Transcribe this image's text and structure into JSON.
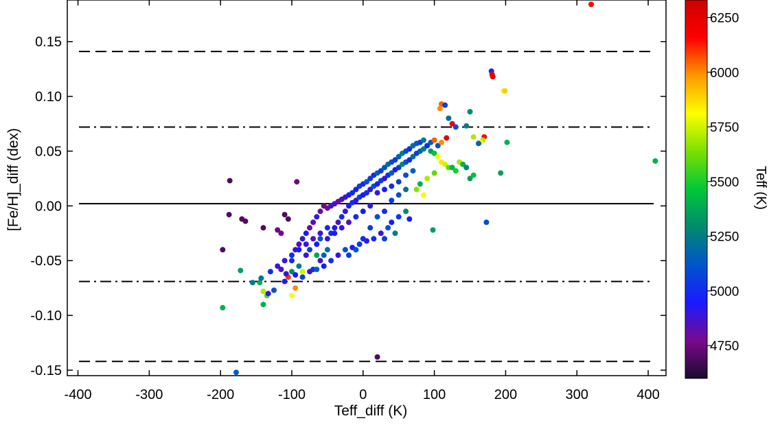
{
  "chart_data": {
    "type": "scatter",
    "title": "",
    "xlabel": "Teff_diff (K)",
    "ylabel": "[Fe/H]_diff (dex)",
    "xlim": [
      -415,
      425
    ],
    "ylim": [
      -0.155,
      0.188
    ],
    "xticks": [
      -400,
      -300,
      -200,
      -100,
      0,
      100,
      200,
      300,
      400
    ],
    "xtick_labels": [
      "-400",
      "-300",
      "-200",
      "-100",
      "0",
      "100",
      "200",
      "300",
      "400"
    ],
    "yticks": [
      -0.15,
      -0.1,
      -0.05,
      0.0,
      0.05,
      0.1,
      0.15
    ],
    "ytick_labels": [
      "-0.15",
      "-0.10",
      "-0.05",
      "0.00",
      "0.05",
      "0.10",
      "0.15"
    ],
    "grid": false,
    "reference_lines": [
      {
        "style": "solid",
        "y": 0.002
      },
      {
        "style": "dashdot",
        "y": 0.072
      },
      {
        "style": "dashdot",
        "y": -0.069
      },
      {
        "style": "dashed",
        "y": 0.141
      },
      {
        "style": "dashed",
        "y": -0.142
      }
    ],
    "colorbar": {
      "label": "Teff (K)",
      "range": [
        4600,
        6330
      ],
      "ticks": [
        4750,
        5000,
        5250,
        5500,
        5750,
        6000,
        6250
      ],
      "tick_labels": [
        "4750",
        "5000",
        "5250",
        "5500",
        "5750",
        "6000",
        "6250"
      ],
      "colormap": [
        "#1a0a2e",
        "#7a0a8c",
        "#1a1aff",
        "#0055cc",
        "#008a6e",
        "#00c83a",
        "#7ae000",
        "#ffff00",
        "#ff9900",
        "#ff0000",
        "#cc0000"
      ]
    },
    "points": [
      [
        320,
        0.184,
        6150
      ],
      [
        180,
        0.123,
        5000
      ],
      [
        181,
        0.12,
        6200
      ],
      [
        182,
        0.118,
        6250
      ],
      [
        197,
        0.105,
        5800
      ],
      [
        199,
        0.105,
        5900
      ],
      [
        410,
        0.041,
        5400
      ],
      [
        110,
        0.093,
        6050
      ],
      [
        115,
        0.092,
        5050
      ],
      [
        108,
        0.089,
        6000
      ],
      [
        120,
        0.08,
        5200
      ],
      [
        150,
        0.086,
        5300
      ],
      [
        145,
        0.073,
        5250
      ],
      [
        125,
        0.075,
        6200
      ],
      [
        130,
        0.072,
        5100
      ],
      [
        170,
        0.063,
        6150
      ],
      [
        168,
        0.06,
        5700
      ],
      [
        165,
        0.058,
        5800
      ],
      [
        162,
        0.057,
        5150
      ],
      [
        202,
        0.058,
        5400
      ],
      [
        155,
        0.063,
        5700
      ],
      [
        117,
        0.062,
        6250
      ],
      [
        193,
        0.03,
        5350
      ],
      [
        173,
        -0.015,
        5100
      ],
      [
        98,
        -0.022,
        5350
      ],
      [
        -187,
        0.023,
        4700
      ],
      [
        -93,
        0.022,
        4750
      ],
      [
        -197,
        -0.04,
        4700
      ],
      [
        -188,
        -0.008,
        4700
      ],
      [
        -170,
        -0.012,
        4700
      ],
      [
        -165,
        -0.014,
        4700
      ],
      [
        -140,
        -0.02,
        4700
      ],
      [
        -110,
        -0.008,
        4700
      ],
      [
        -105,
        -0.012,
        4700
      ],
      [
        -120,
        -0.022,
        4750
      ],
      [
        -115,
        -0.025,
        4800
      ],
      [
        -172,
        -0.059,
        5350
      ],
      [
        -145,
        -0.07,
        5400
      ],
      [
        -143,
        -0.066,
        5200
      ],
      [
        -155,
        -0.07,
        5250
      ],
      [
        -140,
        -0.078,
        5700
      ],
      [
        -135,
        -0.082,
        5600
      ],
      [
        -140,
        -0.09,
        5400
      ],
      [
        -197,
        -0.093,
        5400
      ],
      [
        -133,
        -0.08,
        4900
      ],
      [
        -100,
        -0.082,
        5800
      ],
      [
        -95,
        -0.075,
        6000
      ],
      [
        -125,
        -0.077,
        5100
      ],
      [
        -178,
        -0.152,
        5150
      ],
      [
        20,
        -0.138,
        4700
      ],
      [
        -110,
        -0.069,
        4950
      ],
      [
        -105,
        -0.065,
        6100
      ],
      [
        -100,
        -0.06,
        5300
      ],
      [
        -120,
        -0.055,
        4900
      ],
      [
        -90,
        -0.055,
        5250
      ],
      [
        -85,
        -0.06,
        5750
      ],
      [
        -70,
        -0.058,
        5000
      ],
      [
        -60,
        -0.05,
        4850
      ],
      [
        -55,
        -0.045,
        5150
      ],
      [
        -80,
        -0.045,
        4900
      ],
      [
        -75,
        -0.04,
        5050
      ],
      [
        -65,
        -0.035,
        4950
      ],
      [
        -60,
        -0.03,
        5100
      ],
      [
        -50,
        -0.03,
        4900
      ],
      [
        -45,
        -0.025,
        5000
      ],
      [
        -40,
        -0.02,
        4950
      ],
      [
        -35,
        -0.015,
        4850
      ],
      [
        -30,
        -0.01,
        5000
      ],
      [
        -25,
        -0.005,
        4900
      ],
      [
        -20,
        0.0,
        4950
      ],
      [
        -15,
        0.003,
        5000
      ],
      [
        -10,
        0.005,
        4900
      ],
      [
        -5,
        0.008,
        5050
      ],
      [
        0,
        0.01,
        4950
      ],
      [
        5,
        0.012,
        5000
      ],
      [
        10,
        0.015,
        4900
      ],
      [
        15,
        0.018,
        5100
      ],
      [
        20,
        0.02,
        4950
      ],
      [
        25,
        0.023,
        5050
      ],
      [
        30,
        0.025,
        4900
      ],
      [
        35,
        0.028,
        5000
      ],
      [
        40,
        0.03,
        5150
      ],
      [
        45,
        0.033,
        4950
      ],
      [
        50,
        0.035,
        5050
      ],
      [
        55,
        0.038,
        5300
      ],
      [
        60,
        0.04,
        5100
      ],
      [
        65,
        0.042,
        5000
      ],
      [
        70,
        0.045,
        5200
      ],
      [
        75,
        0.048,
        5050
      ],
      [
        80,
        0.05,
        5150
      ],
      [
        85,
        0.052,
        5250
      ],
      [
        90,
        0.055,
        5100
      ],
      [
        95,
        0.05,
        5350
      ],
      [
        100,
        0.048,
        5450
      ],
      [
        105,
        0.045,
        5800
      ],
      [
        110,
        0.04,
        5850
      ],
      [
        115,
        0.038,
        5750
      ],
      [
        120,
        0.035,
        5600
      ],
      [
        125,
        0.035,
        5400
      ],
      [
        130,
        0.032,
        5500
      ],
      [
        135,
        0.04,
        5700
      ],
      [
        140,
        0.038,
        5400
      ],
      [
        145,
        0.035,
        5300
      ],
      [
        150,
        0.025,
        5350
      ],
      [
        155,
        0.028,
        5450
      ],
      [
        100,
        0.03,
        5600
      ],
      [
        90,
        0.025,
        5700
      ],
      [
        80,
        0.02,
        5400
      ],
      [
        75,
        0.015,
        5650
      ],
      [
        85,
        0.01,
        5800
      ],
      [
        60,
        -0.005,
        5300
      ],
      [
        50,
        -0.01,
        5050
      ],
      [
        40,
        -0.015,
        4950
      ],
      [
        35,
        -0.02,
        5100
      ],
      [
        25,
        -0.025,
        4900
      ],
      [
        15,
        -0.03,
        5000
      ],
      [
        5,
        -0.032,
        4900
      ],
      [
        -5,
        -0.035,
        5050
      ],
      [
        -15,
        -0.038,
        4950
      ],
      [
        -25,
        -0.04,
        5100
      ],
      [
        -35,
        -0.045,
        4900
      ],
      [
        -45,
        -0.05,
        5000
      ],
      [
        -55,
        -0.055,
        4950
      ],
      [
        -65,
        -0.058,
        5150
      ],
      [
        -75,
        -0.06,
        4900
      ],
      [
        -85,
        -0.065,
        5050
      ],
      [
        -95,
        -0.063,
        4950
      ],
      [
        -100,
        -0.05,
        5000
      ],
      [
        -95,
        -0.04,
        4900
      ],
      [
        -90,
        -0.035,
        4850
      ],
      [
        -85,
        -0.03,
        4900
      ],
      [
        -80,
        -0.025,
        4950
      ],
      [
        -75,
        -0.02,
        4800
      ],
      [
        -70,
        -0.015,
        4850
      ],
      [
        -65,
        -0.01,
        4900
      ],
      [
        -60,
        -0.005,
        4800
      ],
      [
        -55,
        0.0,
        4750
      ],
      [
        -50,
        -0.002,
        4800
      ],
      [
        -45,
        0.0,
        4850
      ],
      [
        -40,
        0.002,
        4900
      ],
      [
        -35,
        0.004,
        4800
      ],
      [
        -30,
        0.006,
        4850
      ],
      [
        -25,
        0.008,
        4900
      ],
      [
        -20,
        0.01,
        4950
      ],
      [
        -15,
        0.012,
        5000
      ],
      [
        -10,
        0.015,
        4950
      ],
      [
        -5,
        0.018,
        5050
      ],
      [
        0,
        0.02,
        5000
      ],
      [
        5,
        0.022,
        5100
      ],
      [
        10,
        0.025,
        5050
      ],
      [
        15,
        0.028,
        5000
      ],
      [
        20,
        0.03,
        5150
      ],
      [
        25,
        0.032,
        5050
      ],
      [
        30,
        0.035,
        5100
      ],
      [
        35,
        0.038,
        5200
      ],
      [
        40,
        0.04,
        5100
      ],
      [
        45,
        0.042,
        5050
      ],
      [
        50,
        0.045,
        5150
      ],
      [
        55,
        0.048,
        5250
      ],
      [
        60,
        0.05,
        5100
      ],
      [
        65,
        0.052,
        5000
      ],
      [
        70,
        0.055,
        5200
      ],
      [
        75,
        0.057,
        5150
      ],
      [
        80,
        0.058,
        5050
      ],
      [
        85,
        0.06,
        5250
      ],
      [
        90,
        0.055,
        5000
      ],
      [
        95,
        0.058,
        5150
      ],
      [
        100,
        0.06,
        6050
      ],
      [
        105,
        0.055,
        5100
      ],
      [
        110,
        0.058,
        6000
      ],
      [
        20,
        0.012,
        4900
      ],
      [
        30,
        0.015,
        4950
      ],
      [
        40,
        0.018,
        5000
      ],
      [
        50,
        0.022,
        5050
      ],
      [
        60,
        0.028,
        5100
      ],
      [
        70,
        0.032,
        5150
      ],
      [
        10,
        0.0,
        4900
      ],
      [
        0,
        -0.005,
        4950
      ],
      [
        -10,
        -0.01,
        5000
      ],
      [
        -20,
        -0.015,
        4850
      ],
      [
        -30,
        -0.02,
        4900
      ],
      [
        -40,
        -0.025,
        4950
      ],
      [
        -50,
        -0.02,
        5000
      ],
      [
        -60,
        -0.025,
        4900
      ],
      [
        -70,
        -0.03,
        4850
      ],
      [
        -80,
        -0.035,
        4900
      ],
      [
        -90,
        -0.04,
        4950
      ],
      [
        -100,
        -0.045,
        5000
      ],
      [
        -110,
        -0.05,
        4900
      ],
      [
        -115,
        -0.058,
        4850
      ],
      [
        -108,
        -0.062,
        4900
      ],
      [
        -20,
        -0.045,
        5050
      ],
      [
        -10,
        -0.04,
        5100
      ],
      [
        0,
        -0.03,
        5000
      ],
      [
        10,
        -0.02,
        5050
      ],
      [
        20,
        -0.01,
        5100
      ],
      [
        30,
        -0.005,
        5000
      ],
      [
        40,
        0.005,
        5050
      ],
      [
        50,
        0.01,
        5100
      ],
      [
        60,
        0.015,
        5200
      ],
      [
        45,
        -0.025,
        5250
      ],
      [
        30,
        -0.03,
        5050
      ],
      [
        65,
        -0.012,
        4950
      ],
      [
        -65,
        -0.045,
        5350
      ],
      [
        -50,
        -0.04,
        5200
      ],
      [
        -130,
        -0.06,
        5000
      ]
    ]
  }
}
